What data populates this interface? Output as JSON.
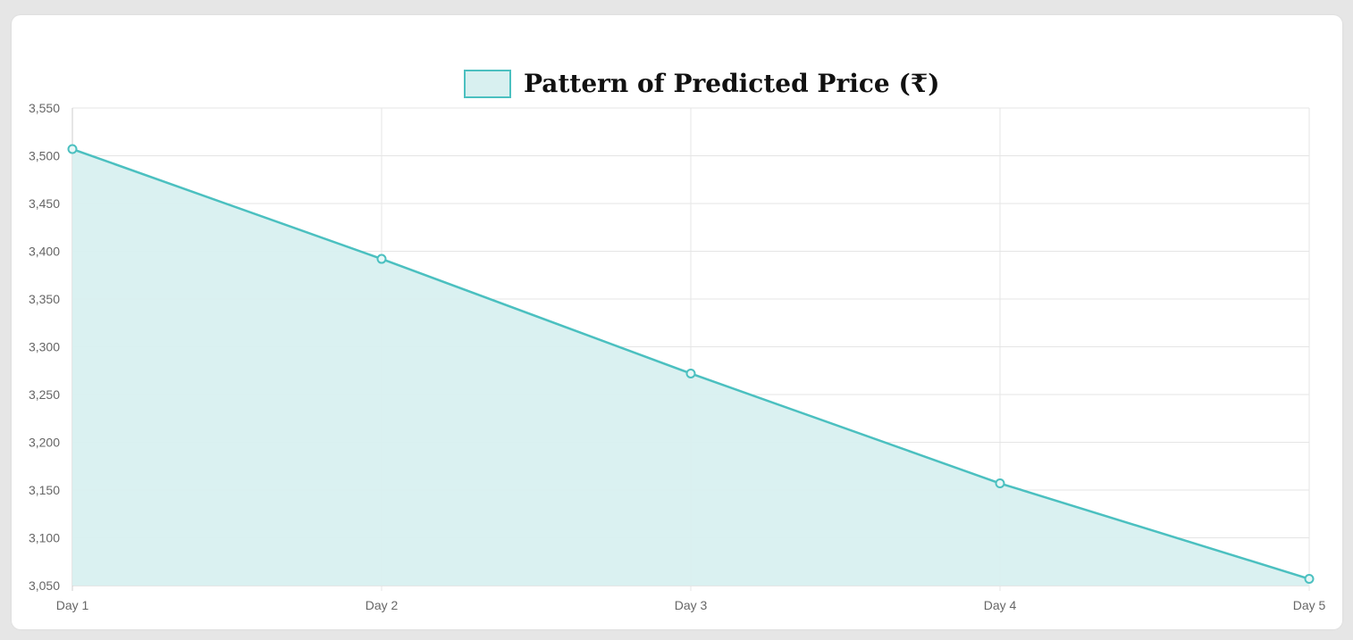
{
  "chart_data": {
    "type": "area",
    "categories": [
      "Day 1",
      "Day 2",
      "Day 3",
      "Day 4",
      "Day 5"
    ],
    "series": [
      {
        "name": "Pattern of Predicted Price (₹)",
        "values": [
          3507,
          3392,
          3272,
          3157,
          3057
        ]
      }
    ],
    "ylim": [
      3050,
      3550
    ],
    "yticks": [
      "3,550",
      "3,500",
      "3,450",
      "3,400",
      "3,350",
      "3,300",
      "3,250",
      "3,200",
      "3,150",
      "3,100",
      "3,050"
    ],
    "ytick_values": [
      3550,
      3500,
      3450,
      3400,
      3350,
      3300,
      3250,
      3200,
      3150,
      3100,
      3050
    ],
    "grid": true,
    "legend_position": "top-center",
    "colors": {
      "line": "#4bc0c0",
      "fill": "#d8f0f0",
      "grid": "#e5e5e5",
      "axis": "#cccccc"
    }
  }
}
